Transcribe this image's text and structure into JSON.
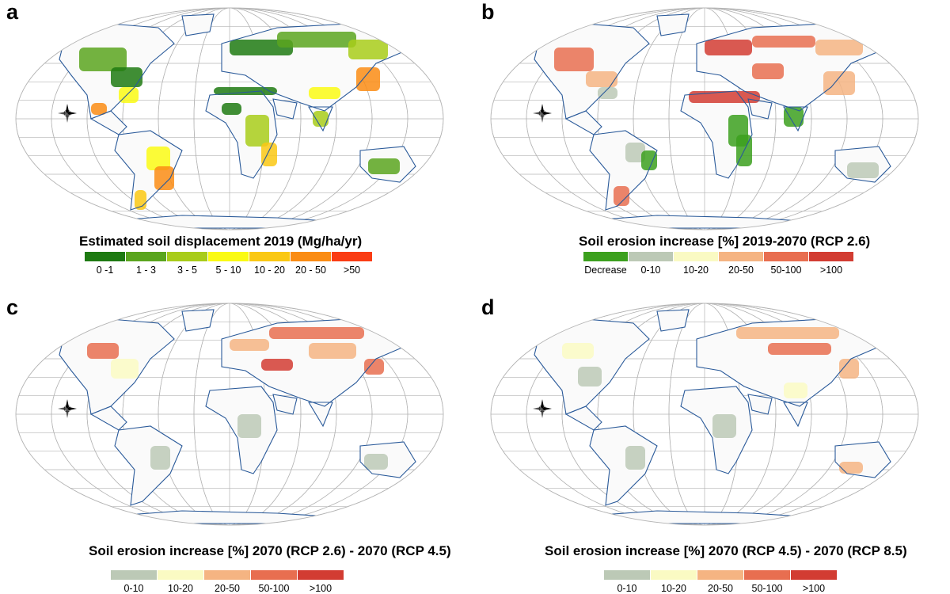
{
  "panels": [
    {
      "letter": "a",
      "title": "Estimated soil displacement  2019 (Mg/ha/yr)",
      "legend": [
        {
          "label": "0 -1",
          "color": "#1e7a12"
        },
        {
          "label": "1 - 3",
          "color": "#5aa51e"
        },
        {
          "label": "3 - 5",
          "color": "#a8cc1a"
        },
        {
          "label": "5 - 10",
          "color": "#fafa14"
        },
        {
          "label": "10 - 20",
          "color": "#fac814"
        },
        {
          "label": "20 - 50",
          "color": "#fa8c14"
        },
        {
          "label": ">50",
          "color": "#fa3c14"
        }
      ]
    },
    {
      "letter": "b",
      "title": "Soil erosion increase [%] 2019-2070 (RCP 2.6)",
      "legend": [
        {
          "label": "Decrease",
          "color": "#3ca01e"
        },
        {
          "label": "0-10",
          "color": "#bcc9b6"
        },
        {
          "label": "10-20",
          "color": "#fafac3"
        },
        {
          "label": "20-50",
          "color": "#f5b482"
        },
        {
          "label": "50-100",
          "color": "#e86e50"
        },
        {
          "label": ">100",
          "color": "#d23c32"
        }
      ]
    },
    {
      "letter": "c",
      "title": "Soil erosion increase [%] 2070 (RCP 2.6) - 2070 (RCP 4.5)",
      "legend": [
        {
          "label": "0-10",
          "color": "#bcc9b6"
        },
        {
          "label": "10-20",
          "color": "#fafac3"
        },
        {
          "label": "20-50",
          "color": "#f5b482"
        },
        {
          "label": "50-100",
          "color": "#e86e50"
        },
        {
          "label": ">100",
          "color": "#d23c32"
        }
      ]
    },
    {
      "letter": "d",
      "title": "Soil erosion increase [%] 2070 (RCP 4.5) - 2070 (RCP 8.5)",
      "legend": [
        {
          "label": "0-10",
          "color": "#bcc9b6"
        },
        {
          "label": "10-20",
          "color": "#fafac3"
        },
        {
          "label": "20-50",
          "color": "#f5b482"
        },
        {
          "label": "50-100",
          "color": "#e86e50"
        },
        {
          "label": ">100",
          "color": "#d23c32"
        }
      ]
    }
  ],
  "colors": {
    "graticule": "#b4b4b4",
    "coast": "#2a5a9a",
    "borders": "#808080"
  }
}
